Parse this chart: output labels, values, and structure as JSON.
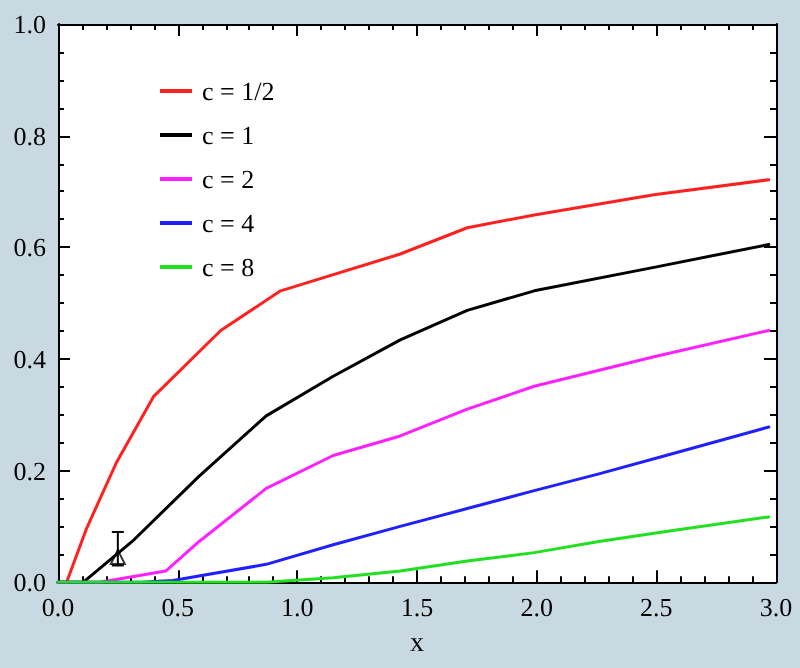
{
  "chart_data": {
    "type": "line",
    "xlabel": "x",
    "xlim": [
      0,
      3
    ],
    "xticks": [
      {
        "value": 0,
        "label": "0.0"
      },
      {
        "value": 0.5,
        "label": "0.5"
      },
      {
        "value": 1,
        "label": "1.0"
      },
      {
        "value": 1.5,
        "label": "1.5"
      },
      {
        "value": 2,
        "label": "2.0"
      },
      {
        "value": 2.5,
        "label": "2.5"
      },
      {
        "value": 3,
        "label": "3.0"
      }
    ],
    "ylim": [
      0,
      1
    ],
    "yticks": [
      {
        "value": 0,
        "label": "0.0"
      },
      {
        "value": 0.2,
        "label": "0.2"
      },
      {
        "value": 0.4,
        "label": "0.4"
      },
      {
        "value": 0.6,
        "label": "0.6"
      },
      {
        "value": 0.8,
        "label": "0.8"
      },
      {
        "value": 1,
        "label": "1.0"
      }
    ],
    "grid": false,
    "legend": "top left",
    "line_style": "solid",
    "marker": "none",
    "series": [
      {
        "name": "c = 1/2",
        "color": "#ff2020",
        "x": [
          0,
          0.036,
          0.12,
          0.245,
          0.4,
          0.68,
          0.93,
          1.43,
          1.71,
          1.99,
          2.49,
          2.97
        ],
        "values": [
          0,
          0,
          0.097,
          0.215,
          0.333,
          0.451,
          0.522,
          0.588,
          0.635,
          0.658,
          0.694,
          0.721
        ]
      },
      {
        "name": "c = 1",
        "color": "#000000",
        "x": [
          0,
          0.106,
          0.31,
          0.59,
          0.87,
          1.15,
          1.43,
          1.71,
          1.99,
          2.49,
          2.97
        ],
        "values": [
          0,
          0,
          0.073,
          0.19,
          0.298,
          0.369,
          0.434,
          0.487,
          0.522,
          0.564,
          0.605
        ]
      },
      {
        "name": "c = 2",
        "color": "#ff20ff",
        "x": [
          0,
          0.175,
          0.45,
          0.59,
          0.87,
          1.15,
          1.43,
          1.71,
          1.99,
          2.49,
          2.97
        ],
        "values": [
          0,
          0,
          0.02,
          0.073,
          0.168,
          0.227,
          0.262,
          0.31,
          0.351,
          0.404,
          0.451
        ]
      },
      {
        "name": "c = 4",
        "color": "#2020ff",
        "x": [
          0,
          0.35,
          0.48,
          0.87,
          1.15,
          1.43,
          1.71,
          1.99,
          2.26,
          2.54,
          2.97
        ],
        "values": [
          0,
          0,
          0.003,
          0.032,
          0.067,
          0.1,
          0.132,
          0.164,
          0.194,
          0.227,
          0.278
        ]
      },
      {
        "name": "c = 8",
        "color": "#20e020",
        "x": [
          0,
          0.87,
          1.15,
          1.43,
          1.71,
          1.99,
          2.26,
          2.54,
          2.97
        ],
        "values": [
          0,
          0,
          0.008,
          0.02,
          0.038,
          0.053,
          0.073,
          0.091,
          0.117
        ]
      },
      {
        "type": "scatter",
        "color": "#000000",
        "marker": "triangle",
        "x": [
          0.25
        ],
        "values": [
          0.045
        ],
        "errors": [
          [
            0.03,
            0.09
          ]
        ]
      }
    ]
  }
}
